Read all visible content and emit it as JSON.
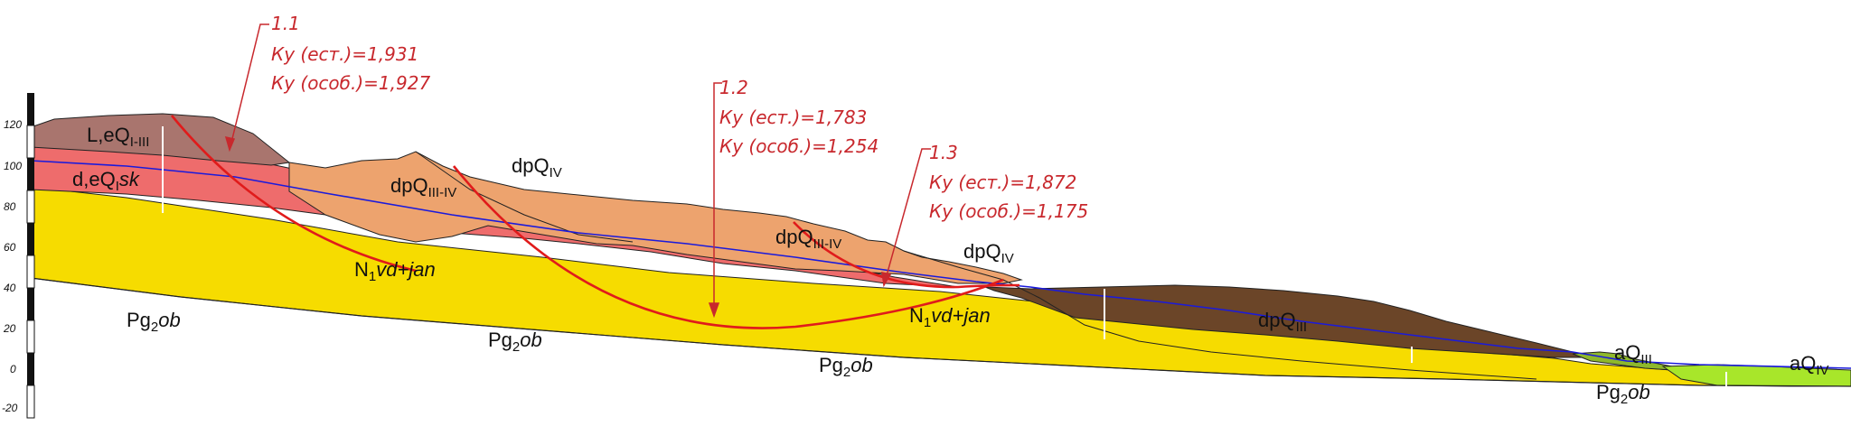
{
  "scale": {
    "ticks": [
      "120",
      "100",
      "80",
      "60",
      "40",
      "20",
      "0",
      "-20"
    ]
  },
  "units": {
    "le": {
      "base": "L,eQ",
      "sub": "I-III",
      "rest": ""
    },
    "de": {
      "base": "d,eQ",
      "sub": "I",
      "rest": "sk"
    },
    "dp_iii_iv_1": {
      "base": "dpQ",
      "sub": "III-IV",
      "rest": ""
    },
    "dp_iv_1": {
      "base": "dpQ",
      "sub": "IV",
      "rest": ""
    },
    "dp_iii_iv_2": {
      "base": "dpQ",
      "sub": "III-IV",
      "rest": ""
    },
    "dp_iv_2": {
      "base": "dpQ",
      "sub": "IV",
      "rest": ""
    },
    "n1_1": {
      "base": "N",
      "sub": "1",
      "rest": "vd+jan"
    },
    "n1_2": {
      "base": "N",
      "sub": "1",
      "rest": "vd+jan"
    },
    "dp_iii": {
      "base": "dpQ",
      "sub": "III",
      "rest": ""
    },
    "a_iii": {
      "base": "aQ",
      "sub": "III",
      "rest": ""
    },
    "a_iv": {
      "base": "aQ",
      "sub": "IV",
      "rest": ""
    },
    "pg_1": {
      "base": "Pg",
      "sub": "2",
      "rest": "ob"
    },
    "pg_2": {
      "base": "Pg",
      "sub": "2",
      "rest": "ob"
    },
    "pg_3": {
      "base": "Pg",
      "sub": "2",
      "rest": "ob"
    },
    "pg_4": {
      "base": "Pg",
      "sub": "2",
      "rest": "ob"
    }
  },
  "calcs": [
    {
      "id": "1.1",
      "natural": "Ку (ест.)=1,931",
      "special": "Ку (особ.)=1,927"
    },
    {
      "id": "1.2",
      "natural": "Ку (ест.)=1,783",
      "special": "Ку (особ.)=1,254"
    },
    {
      "id": "1.3",
      "natural": "Ку (ест.)=1,872",
      "special": "Ку (особ.)=1,175"
    }
  ],
  "colors": {
    "loess": "#a9756e",
    "eluvial": "#ee6c6c",
    "deluvial": "#eda36e",
    "neogene": "#f6dc00",
    "brown": "#6b4528",
    "alluvial_iii": "#8eb82c",
    "alluvial_iv": "#a8e62a",
    "slip": "#e01b1b",
    "water": "#1a1adc",
    "annotation": "#c8282d"
  }
}
